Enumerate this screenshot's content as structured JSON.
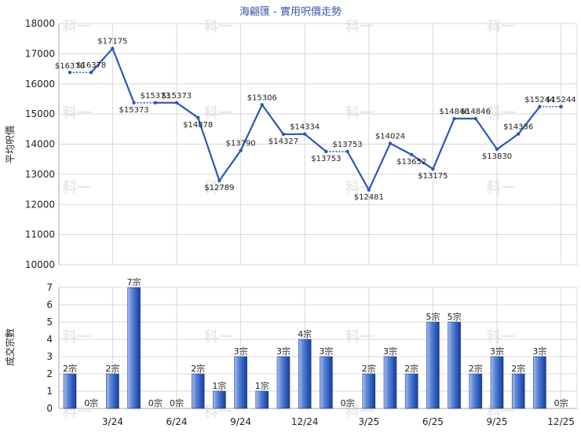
{
  "title": "海翩匯 - 實用呎價走勢",
  "colors": {
    "line": "#2a58b8",
    "bar": "#2a58b8",
    "bar_light": "#a7bfee",
    "grid": "#d8d8d8"
  },
  "watermark": "科一",
  "chart_data": [
    {
      "type": "line",
      "ylabel": "平均呎價",
      "ylim": [
        10000,
        18000
      ],
      "yticks": [
        10000,
        11000,
        12000,
        13000,
        14000,
        15000,
        16000,
        17000,
        18000
      ],
      "grid": true,
      "values": [
        16378,
        16378,
        17175,
        15373,
        15373,
        15373,
        14878,
        12789,
        13790,
        15306,
        14327,
        14334,
        13753,
        13753,
        12481,
        14024,
        13652,
        13175,
        14846,
        14846,
        13830,
        14336,
        15244,
        15244
      ],
      "labels": [
        "$16378",
        "$16378",
        "$17175",
        "$15373",
        "$15373",
        "$15373",
        "$14878",
        "$12789",
        "$13790",
        "$15306",
        "$14327",
        "$14334",
        "$13753",
        "$13753",
        "$12481",
        "$14024",
        "$13652",
        "$13175",
        "$14846",
        "$14846",
        "$13830",
        "$14336",
        "$15244",
        "$15244"
      ],
      "carried_forward": [
        false,
        true,
        false,
        false,
        true,
        false,
        false,
        false,
        false,
        false,
        false,
        false,
        false,
        true,
        false,
        false,
        false,
        false,
        false,
        false,
        false,
        false,
        false,
        true
      ]
    },
    {
      "type": "bar",
      "ylabel": "成交宗數",
      "ylim": [
        0,
        7
      ],
      "yticks": [
        0,
        1,
        2,
        3,
        4,
        5,
        6,
        7
      ],
      "grid": true,
      "values": [
        2,
        0,
        2,
        7,
        0,
        0,
        2,
        1,
        3,
        1,
        3,
        4,
        3,
        0,
        2,
        3,
        2,
        5,
        5,
        2,
        3,
        2,
        3,
        0
      ],
      "labels": [
        "2宗",
        "0宗",
        "2宗",
        "7宗",
        "0宗",
        "0宗",
        "2宗",
        "1宗",
        "3宗",
        "1宗",
        "3宗",
        "4宗",
        "3宗",
        "0宗",
        "2宗",
        "3宗",
        "2宗",
        "5宗",
        "5宗",
        "2宗",
        "3宗",
        "2宗",
        "3宗",
        "0宗"
      ],
      "x_ticks": [
        {
          "index": 2,
          "label": "3/24"
        },
        {
          "index": 5,
          "label": "6/24"
        },
        {
          "index": 8,
          "label": "9/24"
        },
        {
          "index": 11,
          "label": "12/24"
        },
        {
          "index": 14,
          "label": "3/25"
        },
        {
          "index": 17,
          "label": "6/25"
        },
        {
          "index": 20,
          "label": "9/25"
        },
        {
          "index": 23,
          "label": "12/25"
        }
      ]
    }
  ]
}
